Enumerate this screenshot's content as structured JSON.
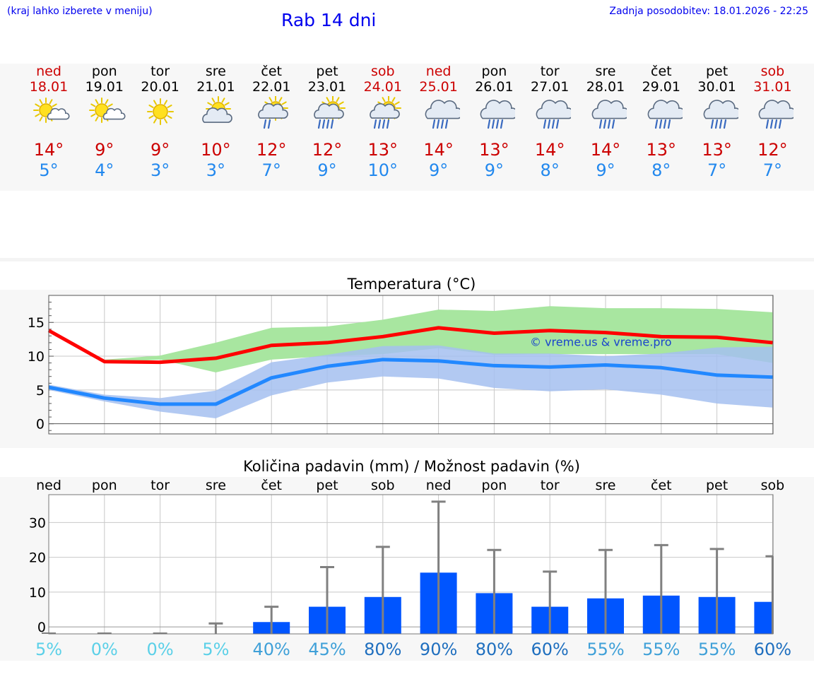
{
  "header": {
    "location_hint": "(kraj lahko izberete v meniju)",
    "title": "Rab 14 dni",
    "last_update": "Zadnja posodobitev: 18.01.2026 - 22:25"
  },
  "days": [
    {
      "name": "ned",
      "date": "18.01",
      "weekend": true,
      "icon": "sun-cloud-icon",
      "tmax": "14°",
      "tmin": "5°"
    },
    {
      "name": "pon",
      "date": "19.01",
      "weekend": false,
      "icon": "sun-cloud-icon",
      "tmax": "9°",
      "tmin": "4°"
    },
    {
      "name": "tor",
      "date": "20.01",
      "weekend": false,
      "icon": "sun-icon",
      "tmax": "9°",
      "tmin": "3°"
    },
    {
      "name": "sre",
      "date": "21.01",
      "weekend": false,
      "icon": "sun-behind-cloud-icon",
      "tmax": "10°",
      "tmin": "3°"
    },
    {
      "name": "čet",
      "date": "22.01",
      "weekend": false,
      "icon": "sun-cloud-light-rain-icon",
      "tmax": "12°",
      "tmin": "7°"
    },
    {
      "name": "pet",
      "date": "23.01",
      "weekend": false,
      "icon": "sun-cloud-rain-icon",
      "tmax": "12°",
      "tmin": "9°"
    },
    {
      "name": "sob",
      "date": "24.01",
      "weekend": true,
      "icon": "sun-cloud-rain-icon",
      "tmax": "13°",
      "tmin": "10°"
    },
    {
      "name": "ned",
      "date": "25.01",
      "weekend": true,
      "icon": "cloud-rain-icon",
      "tmax": "14°",
      "tmin": "9°"
    },
    {
      "name": "pon",
      "date": "26.01",
      "weekend": false,
      "icon": "cloud-rain-icon",
      "tmax": "13°",
      "tmin": "9°"
    },
    {
      "name": "tor",
      "date": "27.01",
      "weekend": false,
      "icon": "cloud-rain-icon",
      "tmax": "14°",
      "tmin": "8°"
    },
    {
      "name": "sre",
      "date": "28.01",
      "weekend": false,
      "icon": "cloud-rain-icon",
      "tmax": "14°",
      "tmin": "9°"
    },
    {
      "name": "čet",
      "date": "29.01",
      "weekend": false,
      "icon": "cloud-rain-icon",
      "tmax": "13°",
      "tmin": "8°"
    },
    {
      "name": "pet",
      "date": "30.01",
      "weekend": false,
      "icon": "cloud-rain-icon",
      "tmax": "13°",
      "tmin": "7°"
    },
    {
      "name": "sob",
      "date": "31.01",
      "weekend": true,
      "icon": "cloud-rain-icon",
      "tmax": "12°",
      "tmin": "7°"
    }
  ],
  "colors": {
    "max_line": "#ff0000",
    "max_band": "#a8e6a0",
    "min_line": "#2288ff",
    "min_band": "#a4bff0",
    "overlap_band": "#7fc4a6",
    "bar": "#0055ff",
    "whisker": "#808080"
  },
  "chart_data": [
    {
      "type": "line",
      "title": "Temperatura (°C)",
      "watermark": "© vreme.us & vreme.pro",
      "x": [
        0,
        1,
        2,
        3,
        4,
        5,
        6,
        7,
        8,
        9,
        10,
        11,
        12,
        13
      ],
      "ylim": [
        -1.5,
        19
      ],
      "yticks": [
        0,
        5,
        10,
        15
      ],
      "series": [
        {
          "name": "max",
          "values": [
            13.8,
            9.2,
            9.1,
            9.7,
            11.6,
            12.0,
            12.9,
            14.2,
            13.4,
            13.8,
            13.5,
            12.9,
            12.8,
            12.0
          ]
        },
        {
          "name": "max_low",
          "values": [
            13.6,
            9.0,
            9.5,
            7.6,
            9.5,
            10.0,
            10.3,
            11.2,
            10.2,
            10.3,
            10.3,
            10.3,
            10.3,
            9.0
          ]
        },
        {
          "name": "max_high",
          "values": [
            14.0,
            9.5,
            10.1,
            12.0,
            14.2,
            14.4,
            15.4,
            16.9,
            16.7,
            17.4,
            17.1,
            17.1,
            17.0,
            16.5
          ]
        },
        {
          "name": "min",
          "values": [
            5.4,
            3.8,
            2.9,
            2.9,
            6.8,
            8.5,
            9.5,
            9.3,
            8.6,
            8.4,
            8.7,
            8.3,
            7.2,
            6.9
          ]
        },
        {
          "name": "min_low",
          "values": [
            5.0,
            3.3,
            1.8,
            0.8,
            4.2,
            6.1,
            7.0,
            6.7,
            5.3,
            4.8,
            5.1,
            4.3,
            3.0,
            2.4
          ]
        },
        {
          "name": "min_high",
          "values": [
            5.8,
            4.3,
            3.8,
            4.9,
            9.1,
            10.2,
            11.5,
            11.6,
            10.4,
            10.4,
            10.0,
            10.4,
            11.3,
            11.4
          ]
        }
      ]
    },
    {
      "type": "bar",
      "title": "Količina padavin (mm) / Možnost padavin (%)",
      "categories": [
        "ned",
        "pon",
        "tor",
        "sre",
        "čet",
        "pet",
        "sob",
        "ned",
        "pon",
        "tor",
        "sre",
        "čet",
        "pet",
        "sob"
      ],
      "ylim": [
        -2,
        38
      ],
      "yticks": [
        0,
        10,
        20,
        30
      ],
      "series": [
        {
          "name": "precipitation_mm",
          "values": [
            0,
            0,
            0,
            0,
            1.4,
            5.8,
            8.6,
            15.6,
            9.7,
            5.8,
            8.2,
            9.0,
            8.6,
            7.2
          ]
        },
        {
          "name": "precipitation_max_mm",
          "values": [
            0,
            0,
            0,
            1.0,
            5.8,
            17.2,
            23.0,
            36.0,
            22.1,
            15.9,
            22.1,
            23.5,
            22.4,
            20.3
          ]
        },
        {
          "name": "probability",
          "values": [
            "5%",
            "0%",
            "0%",
            "5%",
            "40%",
            "45%",
            "80%",
            "90%",
            "80%",
            "60%",
            "55%",
            "55%",
            "55%",
            "60%"
          ]
        }
      ]
    }
  ]
}
